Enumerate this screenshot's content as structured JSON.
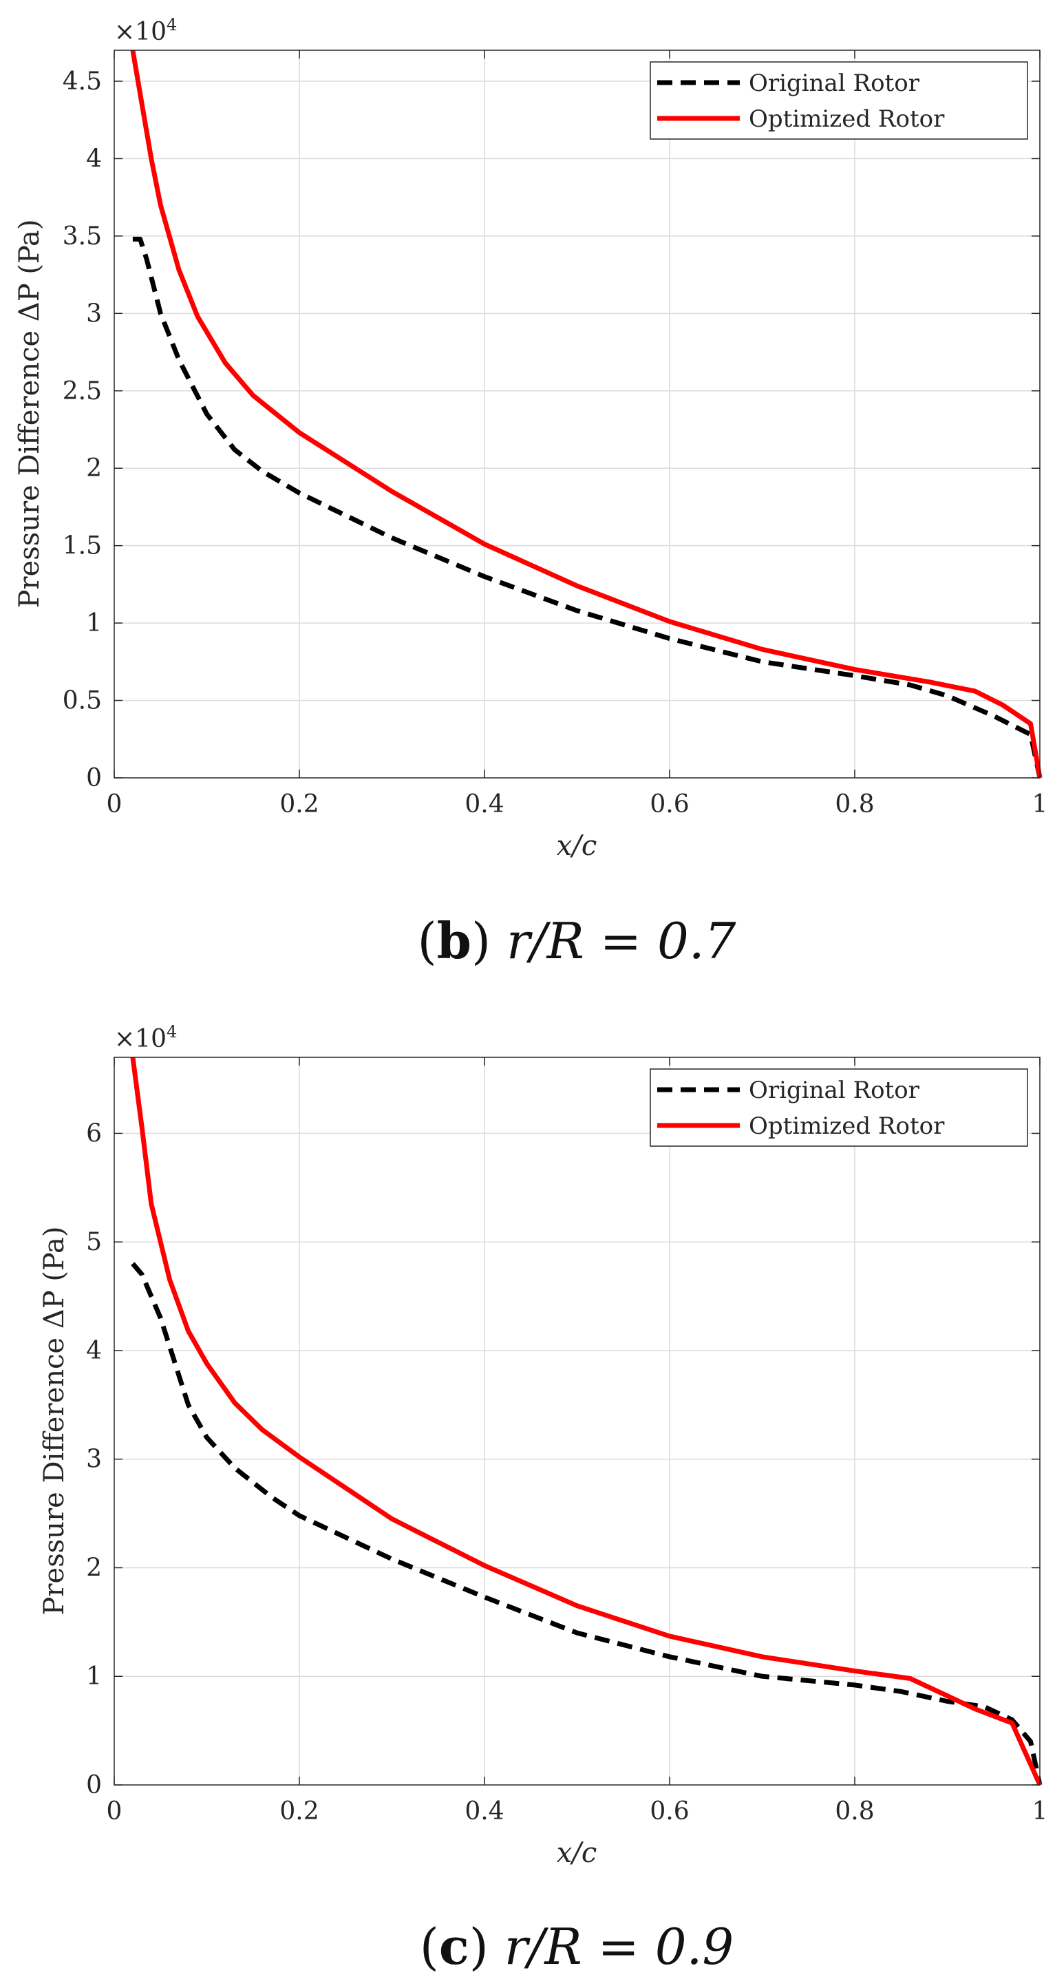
{
  "chart_data": [
    {
      "type": "line",
      "caption": {
        "letter": "b",
        "rest": " r/R = 0.7"
      },
      "xlabel": "x/c",
      "ylabel": "Pressure Difference ΔP (Pa)",
      "multiplier": "×10",
      "multiplier_exponent": "4",
      "xlim": [
        0,
        1
      ],
      "ylim": [
        0,
        4.7
      ],
      "xticks": [
        0,
        0.2,
        0.4,
        0.6,
        0.8,
        1
      ],
      "xtick_labels": [
        "0",
        "0.2",
        "0.4",
        "0.6",
        "0.8",
        "1"
      ],
      "yticks": [
        0,
        0.5,
        1,
        1.5,
        2,
        2.5,
        3,
        3.5,
        4,
        4.5
      ],
      "ytick_labels": [
        "0",
        "0.5",
        "1",
        "1.5",
        "2",
        "2.5",
        "3",
        "3.5",
        "4",
        "4.5"
      ],
      "grid": true,
      "legend_position": "top-right",
      "series": [
        {
          "name": "Original Rotor",
          "color": "#000000",
          "style": "dashed",
          "points": [
            [
              0.02,
              3.48
            ],
            [
              0.028,
              3.48
            ],
            [
              0.035,
              3.35
            ],
            [
              0.05,
              3.0
            ],
            [
              0.07,
              2.7
            ],
            [
              0.1,
              2.35
            ],
            [
              0.13,
              2.12
            ],
            [
              0.16,
              1.98
            ],
            [
              0.2,
              1.84
            ],
            [
              0.3,
              1.55
            ],
            [
              0.4,
              1.3
            ],
            [
              0.5,
              1.08
            ],
            [
              0.6,
              0.9
            ],
            [
              0.7,
              0.75
            ],
            [
              0.8,
              0.66
            ],
            [
              0.86,
              0.6
            ],
            [
              0.9,
              0.53
            ],
            [
              0.95,
              0.4
            ],
            [
              0.99,
              0.28
            ],
            [
              1.0,
              0.0
            ]
          ]
        },
        {
          "name": "Optimized Rotor",
          "color": "#ff0000",
          "style": "solid",
          "points": [
            [
              0.02,
              4.7
            ],
            [
              0.03,
              4.35
            ],
            [
              0.04,
              4.0
            ],
            [
              0.05,
              3.7
            ],
            [
              0.07,
              3.28
            ],
            [
              0.09,
              2.98
            ],
            [
              0.12,
              2.68
            ],
            [
              0.15,
              2.47
            ],
            [
              0.2,
              2.23
            ],
            [
              0.3,
              1.85
            ],
            [
              0.4,
              1.51
            ],
            [
              0.5,
              1.24
            ],
            [
              0.6,
              1.01
            ],
            [
              0.7,
              0.83
            ],
            [
              0.8,
              0.7
            ],
            [
              0.88,
              0.62
            ],
            [
              0.93,
              0.56
            ],
            [
              0.96,
              0.47
            ],
            [
              0.99,
              0.35
            ],
            [
              1.0,
              0.0
            ]
          ]
        }
      ]
    },
    {
      "type": "line",
      "caption": {
        "letter": "c",
        "rest": " r/R = 0.9"
      },
      "xlabel": "x/c",
      "ylabel": "Pressure Difference ΔP (Pa)",
      "multiplier": "×10",
      "multiplier_exponent": "4",
      "xlim": [
        0,
        1
      ],
      "ylim": [
        0,
        6.7
      ],
      "xticks": [
        0,
        0.2,
        0.4,
        0.6,
        0.8,
        1
      ],
      "xtick_labels": [
        "0",
        "0.2",
        "0.4",
        "0.6",
        "0.8",
        "1"
      ],
      "yticks": [
        0,
        1,
        2,
        3,
        4,
        5,
        6
      ],
      "ytick_labels": [
        "0",
        "1",
        "2",
        "3",
        "4",
        "5",
        "6"
      ],
      "grid": true,
      "legend_position": "top-right",
      "series": [
        {
          "name": "Original Rotor",
          "color": "#000000",
          "style": "dashed",
          "points": [
            [
              0.02,
              4.8
            ],
            [
              0.03,
              4.7
            ],
            [
              0.05,
              4.3
            ],
            [
              0.08,
              3.5
            ],
            [
              0.1,
              3.2
            ],
            [
              0.13,
              2.92
            ],
            [
              0.17,
              2.65
            ],
            [
              0.2,
              2.48
            ],
            [
              0.3,
              2.08
            ],
            [
              0.4,
              1.73
            ],
            [
              0.5,
              1.4
            ],
            [
              0.6,
              1.18
            ],
            [
              0.7,
              1.0
            ],
            [
              0.8,
              0.92
            ],
            [
              0.85,
              0.86
            ],
            [
              0.9,
              0.77
            ],
            [
              0.94,
              0.72
            ],
            [
              0.97,
              0.6
            ],
            [
              0.99,
              0.4
            ],
            [
              1.0,
              0.0
            ]
          ]
        },
        {
          "name": "Optimized Rotor",
          "color": "#ff0000",
          "style": "solid",
          "points": [
            [
              0.02,
              6.7
            ],
            [
              0.03,
              6.05
            ],
            [
              0.04,
              5.35
            ],
            [
              0.06,
              4.65
            ],
            [
              0.08,
              4.18
            ],
            [
              0.1,
              3.88
            ],
            [
              0.13,
              3.52
            ],
            [
              0.16,
              3.27
            ],
            [
              0.2,
              3.02
            ],
            [
              0.3,
              2.45
            ],
            [
              0.4,
              2.02
            ],
            [
              0.5,
              1.65
            ],
            [
              0.6,
              1.37
            ],
            [
              0.7,
              1.18
            ],
            [
              0.8,
              1.05
            ],
            [
              0.86,
              0.98
            ],
            [
              0.9,
              0.82
            ],
            [
              0.93,
              0.7
            ],
            [
              0.97,
              0.57
            ],
            [
              1.0,
              0.0
            ]
          ]
        }
      ]
    }
  ]
}
